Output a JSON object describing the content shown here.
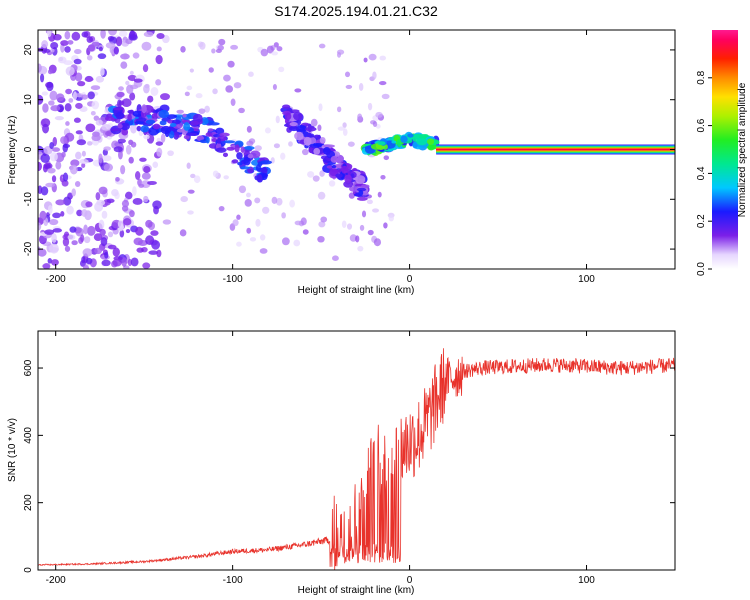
{
  "figure": {
    "title": "S174.2025.194.01.21.C32"
  },
  "colors": {
    "snr_line": "#e8322b",
    "axes": "#000000",
    "line_core": "#ff0040"
  },
  "colorbar": {
    "label": "Normalized spectral amplitude",
    "ticks": [
      "0.0",
      "0.2",
      "0.4",
      "0.6",
      "0.8"
    ],
    "tick_values": [
      0.0,
      0.2,
      0.4,
      0.6,
      0.8
    ],
    "range": [
      0,
      1
    ],
    "colormap": "rainbow (white → violet → blue → cyan → green → yellow → orange → red → magenta)"
  },
  "chart_data": [
    {
      "type": "heatmap",
      "xlabel": "Height of straight line (km)",
      "ylabel": "Frequency (Hz)",
      "xlim": [
        -210,
        150
      ],
      "ylim": [
        -24,
        24
      ],
      "xticks": [
        -200,
        -100,
        0,
        100
      ],
      "yticks": [
        -20,
        -10,
        0,
        10,
        20
      ],
      "features": [
        {
          "x_range": [
            -210,
            -130
          ],
          "freq_range": [
            -24,
            24
          ],
          "amplitude": 0.15,
          "description_type": "scattered noise"
        },
        {
          "x_range": [
            -170,
            -80
          ],
          "freq_center": [
            6,
            6,
            3,
            -5
          ],
          "amplitude_peak": 0.3
        },
        {
          "x_range": [
            -70,
            -25
          ],
          "freq_center": [
            7,
            2,
            -4,
            -8
          ],
          "amplitude_peak": 0.25
        },
        {
          "x_range": [
            -25,
            15
          ],
          "freq_center": [
            0,
            1,
            2,
            1
          ],
          "amplitude_peak": 0.6
        },
        {
          "x_range": [
            15,
            150
          ],
          "freq_center": [
            0
          ],
          "amplitude_peak": 1.0
        }
      ]
    },
    {
      "type": "line",
      "xlabel": "Height of straight line (km)",
      "ylabel": "SNR (10 * v/v)",
      "xlim": [
        -210,
        150
      ],
      "ylim": [
        0,
        710
      ],
      "xticks": [
        -200,
        -100,
        0,
        100
      ],
      "yticks": [
        0,
        200,
        400,
        600
      ],
      "series": [
        {
          "x": [
            -210,
            -180,
            -150,
            -120,
            -100,
            -80,
            -60,
            -45,
            -35,
            -30,
            -25,
            -20,
            -15,
            -10,
            -5,
            0,
            5,
            10,
            15,
            20,
            30,
            40,
            60,
            80,
            100,
            120,
            150
          ],
          "y": [
            15,
            18,
            25,
            40,
            55,
            60,
            75,
            90,
            150,
            180,
            240,
            300,
            330,
            340,
            360,
            380,
            400,
            440,
            500,
            560,
            590,
            600,
            605,
            610,
            605,
            600,
            608
          ]
        }
      ]
    }
  ]
}
